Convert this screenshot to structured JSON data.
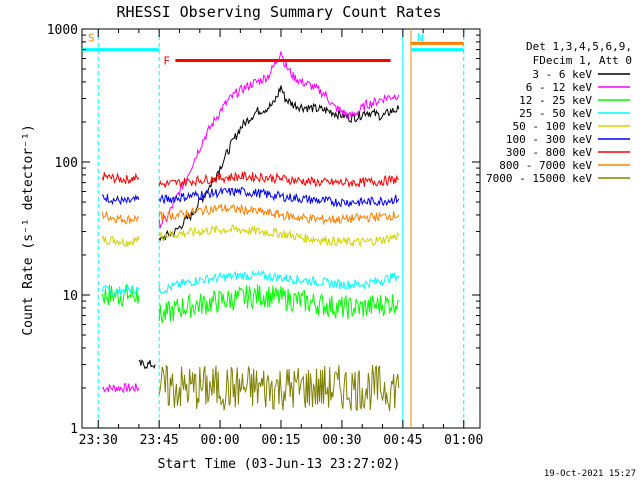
{
  "chart_data": {
    "type": "line",
    "title": "RHESSI Observing Summary Count Rates",
    "xlabel": "Start Time (03-Jun-13 23:27:02)",
    "ylabel": "Count Rate (s⁻¹ detector⁻¹)",
    "y_scale": "log",
    "ylim": [
      1,
      1000
    ],
    "xlim_minutes": [
      -4,
      94
    ],
    "x_ticks": [
      {
        "label": "23:30",
        "minute": 0
      },
      {
        "label": "23:45",
        "minute": 15
      },
      {
        "label": "00:00",
        "minute": 30
      },
      {
        "label": "00:15",
        "minute": 45
      },
      {
        "label": "00:30",
        "minute": 60
      },
      {
        "label": "00:45",
        "minute": 75
      },
      {
        "label": "01:00",
        "minute": 90
      }
    ],
    "y_ticks": [
      {
        "label": "1",
        "value": 1
      },
      {
        "label": "10",
        "value": 10
      },
      {
        "label": "100",
        "value": 100
      },
      {
        "label": "1000",
        "value": 1000
      }
    ],
    "legend_header": [
      "Det 1,3,4,5,6,9,",
      "FDecim 1, Att 0"
    ],
    "legend_position": "right",
    "series": [
      {
        "name": "3 - 6 keV",
        "color": "#000000",
        "x": [
          15,
          16,
          17,
          19,
          21,
          23,
          25,
          27,
          29,
          31,
          33,
          35,
          37,
          39,
          41,
          43,
          44,
          45,
          46,
          48,
          50,
          52,
          54,
          56,
          58,
          60,
          62,
          64,
          66,
          68,
          70,
          72,
          74
        ],
        "y": [
          25,
          27,
          28,
          30,
          35,
          40,
          50,
          62,
          80,
          105,
          140,
          180,
          210,
          240,
          250,
          270,
          310,
          370,
          300,
          270,
          260,
          255,
          250,
          245,
          235,
          225,
          215,
          220,
          240,
          230,
          220,
          240,
          250
        ]
      },
      {
        "name": "6 - 12 keV",
        "color": "#ff00ff",
        "x": [
          15,
          16,
          17,
          18,
          20,
          22,
          24,
          26,
          28,
          30,
          32,
          34,
          36,
          38,
          40,
          42,
          44,
          45,
          46,
          48,
          50,
          52,
          54,
          56,
          58,
          60,
          62,
          64,
          66,
          68,
          70,
          72,
          74
        ],
        "y": [
          34,
          36,
          38,
          45,
          60,
          80,
          110,
          150,
          190,
          240,
          290,
          330,
          360,
          390,
          410,
          450,
          580,
          690,
          540,
          440,
          400,
          380,
          350,
          320,
          260,
          240,
          220,
          240,
          270,
          280,
          300,
          310,
          320
        ]
      },
      {
        "name": "12 - 25 keV",
        "color": "#00ff00",
        "x": [
          15,
          16,
          20,
          25,
          30,
          35,
          40,
          45,
          50,
          55,
          60,
          65,
          70,
          74
        ],
        "y": [
          7,
          7,
          8,
          8.5,
          9,
          9.5,
          10,
          9.5,
          9,
          8.5,
          8,
          8,
          8.5,
          9
        ]
      },
      {
        "name": "25 - 50 keV",
        "color": "#00ffff",
        "x": [
          15,
          16,
          20,
          25,
          30,
          35,
          40,
          45,
          50,
          55,
          60,
          65,
          70,
          74
        ],
        "y": [
          11,
          11,
          12,
          13,
          13.5,
          14,
          14,
          13.5,
          13,
          12.5,
          12,
          12,
          13,
          14
        ]
      },
      {
        "name": "50 - 100 keV",
        "color": "#d4d400",
        "x": [
          15,
          16,
          20,
          25,
          30,
          35,
          40,
          45,
          50,
          55,
          60,
          65,
          70,
          74
        ],
        "y": [
          28,
          28,
          29,
          30,
          31,
          31,
          30,
          29,
          27,
          26,
          25,
          25,
          26,
          28
        ]
      },
      {
        "name": "100 - 300 keV",
        "color": "#0000ff",
        "x": [
          15,
          16,
          20,
          25,
          30,
          35,
          40,
          45,
          50,
          55,
          60,
          65,
          70,
          74
        ],
        "y": [
          52,
          52,
          54,
          57,
          59,
          60,
          58,
          55,
          53,
          51,
          50,
          50,
          51,
          53
        ]
      },
      {
        "name": "300 - 800 keV",
        "color": "#ff0000",
        "x": [
          15,
          16,
          20,
          25,
          30,
          35,
          40,
          45,
          50,
          55,
          60,
          65,
          70,
          74
        ],
        "y": [
          68,
          68,
          70,
          73,
          76,
          78,
          77,
          75,
          72,
          70,
          70,
          70,
          72,
          74
        ]
      },
      {
        "name": "800 - 7000 keV",
        "color": "#ff8000",
        "x": [
          15,
          16,
          20,
          25,
          30,
          35,
          40,
          45,
          50,
          55,
          60,
          65,
          70,
          74
        ],
        "y": [
          39,
          39,
          40,
          43,
          45,
          44,
          42,
          40,
          38,
          37,
          37,
          38,
          39,
          40
        ]
      },
      {
        "name": "7000 - 15000 keV",
        "color": "#808000",
        "x": [
          15,
          20,
          25,
          30,
          35,
          40,
          45,
          50,
          55,
          60,
          65,
          70,
          74
        ],
        "y": [
          2,
          2,
          2,
          2,
          2,
          2,
          2,
          2,
          2,
          2,
          2,
          2,
          2
        ]
      }
    ],
    "pre_gap_series": [
      {
        "name": "6 - 12 keV",
        "color": "#ff00ff",
        "x": [
          1,
          4,
          7,
          10
        ],
        "y": [
          2,
          2,
          2,
          2
        ]
      },
      {
        "name": "12 - 25 keV",
        "color": "#00ff00",
        "x": [
          1,
          4,
          7,
          10
        ],
        "y": [
          10,
          10,
          10,
          10
        ]
      },
      {
        "name": "25 - 50 keV",
        "color": "#00ffff",
        "x": [
          1,
          4,
          7,
          10
        ],
        "y": [
          11,
          10.5,
          11,
          11
        ]
      },
      {
        "name": "50 - 100 keV",
        "color": "#d4d400",
        "x": [
          1,
          4,
          7,
          10
        ],
        "y": [
          26,
          26,
          25,
          26
        ]
      },
      {
        "name": "100 - 300 keV",
        "color": "#0000ff",
        "x": [
          1,
          4,
          7,
          10
        ],
        "y": [
          55,
          52,
          50,
          52
        ]
      },
      {
        "name": "300 - 800 keV",
        "color": "#ff0000",
        "x": [
          1,
          4,
          7,
          10
        ],
        "y": [
          78,
          75,
          74,
          76
        ]
      },
      {
        "name": "800 - 7000 keV",
        "color": "#ff8000",
        "x": [
          1,
          4,
          7,
          10
        ],
        "y": [
          40,
          38,
          37,
          38
        ]
      },
      {
        "name": "3 - 6 keV",
        "color": "#000000",
        "x": [
          10,
          12,
          14
        ],
        "y": [
          3,
          3,
          3
        ]
      }
    ],
    "flag_bars": [
      {
        "label": "S",
        "color": "#00ffff",
        "x": [
          -4,
          15
        ],
        "y": 700,
        "label_color": "#ff8000"
      },
      {
        "label": "N",
        "color": "#00ffff",
        "x": [
          77,
          90
        ],
        "y": 700,
        "label_color": "#00ffff"
      },
      {
        "label": "F",
        "color": "#ff0000",
        "x": [
          19,
          72
        ],
        "y": 580,
        "label_color": "#ff0000"
      },
      {
        "label": "",
        "color": "#ff8000",
        "x": [
          77,
          90
        ],
        "y": 780,
        "label_color": "#ff8000"
      }
    ],
    "vertical_markers": [
      {
        "minute": 0,
        "color": "#00ffff",
        "style": "dashed"
      },
      {
        "minute": 15,
        "color": "#00ffff",
        "style": "dashed"
      },
      {
        "minute": 75,
        "color": "#00ffff",
        "style": "solid"
      },
      {
        "minute": 77,
        "color": "#ff8000",
        "style": "solid"
      },
      {
        "minute": 90,
        "color": "#00ffff",
        "style": "dashed"
      }
    ],
    "flag_labels": {
      "S": "S",
      "N": "N",
      "F": "F"
    },
    "footer_date": "19-Oct-2021 15:27"
  }
}
